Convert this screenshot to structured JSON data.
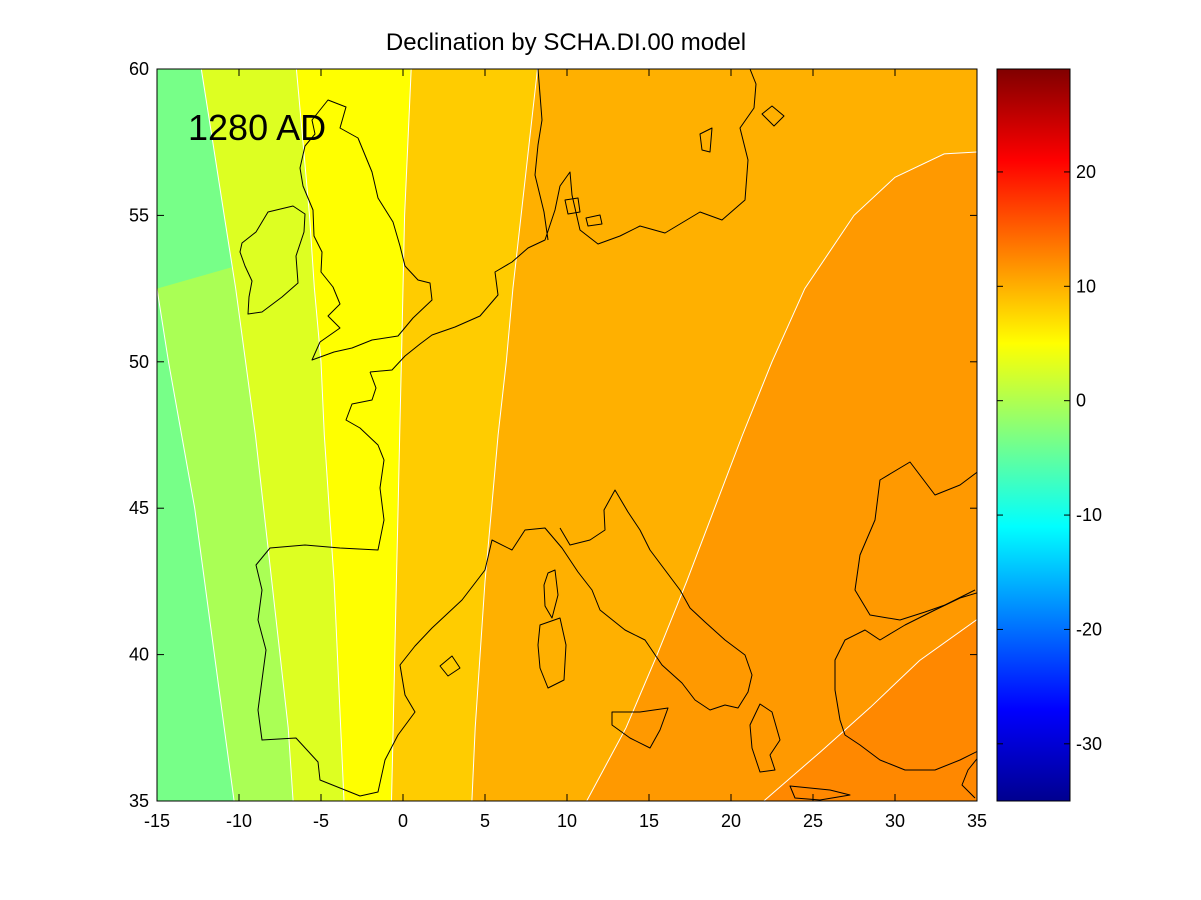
{
  "chart_data": [
    {
      "type": "heatmap",
      "title": "Declination by SCHA.DI.00 model",
      "annotation": "1280 AD",
      "xlabel": "",
      "ylabel": "",
      "xlim": [
        -15,
        35
      ],
      "ylim": [
        35,
        60
      ],
      "x_ticks": [
        -15,
        -10,
        -5,
        0,
        5,
        10,
        15,
        20,
        25,
        30,
        35
      ],
      "y_ticks": [
        35,
        40,
        45,
        50,
        55,
        60
      ],
      "grid": false,
      "contour_levels": [
        -3,
        0,
        3,
        6,
        9,
        12,
        15
      ],
      "contour_bands": [
        {
          "range": [
            -3,
            0
          ],
          "color": "#77ff88"
        },
        {
          "range": [
            0,
            3
          ],
          "color": "#aaff55"
        },
        {
          "range": [
            3,
            6
          ],
          "color": "#ddff22"
        },
        {
          "range": [
            6,
            9
          ],
          "color": "#ffff00"
        },
        {
          "range": [
            9,
            12
          ],
          "color": "#ffcc00"
        },
        {
          "range": [
            12,
            15
          ],
          "color": "#ffb000"
        },
        {
          "range": [
            15,
            18
          ],
          "color": "#ff9900"
        },
        {
          "range": [
            18,
            21
          ],
          "color": "#ff8800"
        }
      ],
      "contour_lines": [
        {
          "level": -3,
          "points": [
            [
              -15,
              52.5
            ],
            [
              -14.3,
              50
            ],
            [
              -13.5,
              47.5
            ],
            [
              -12.7,
              45
            ],
            [
              -12.1,
              42.5
            ],
            [
              -11.5,
              40
            ],
            [
              -10.9,
              37.5
            ],
            [
              -10.3,
              35
            ]
          ]
        },
        {
          "level": 0,
          "points": [
            [
              -12.3,
              60
            ],
            [
              -11.6,
              57.5
            ],
            [
              -10.9,
              55
            ],
            [
              -10.2,
              52.5
            ],
            [
              -9.6,
              50
            ],
            [
              -9.0,
              47.5
            ],
            [
              -8.5,
              45
            ],
            [
              -8.0,
              42.5
            ],
            [
              -7.5,
              40
            ],
            [
              -7.0,
              37.5
            ],
            [
              -6.7,
              35
            ]
          ]
        },
        {
          "level": 3,
          "points": [
            [
              -6.5,
              60
            ],
            [
              -6.1,
              57.5
            ],
            [
              -5.7,
              55
            ],
            [
              -5.4,
              52.5
            ],
            [
              -5.0,
              50
            ],
            [
              -4.8,
              47.5
            ],
            [
              -4.5,
              45
            ],
            [
              -4.2,
              42.5
            ],
            [
              -4.0,
              40
            ],
            [
              -3.8,
              37.5
            ],
            [
              -3.6,
              35
            ]
          ]
        },
        {
          "level": 6,
          "points": [
            [
              0.5,
              60
            ],
            [
              0.3,
              57.5
            ],
            [
              0.1,
              55
            ],
            [
              0,
              52.5
            ],
            [
              -0.1,
              50
            ],
            [
              -0.2,
              47.5
            ],
            [
              -0.3,
              45
            ],
            [
              -0.4,
              42.5
            ],
            [
              -0.5,
              40
            ],
            [
              -0.6,
              37.5
            ],
            [
              -0.7,
              35
            ]
          ]
        },
        {
          "level": 9,
          "points": [
            [
              8.2,
              60
            ],
            [
              7.7,
              57.5
            ],
            [
              7.2,
              55
            ],
            [
              6.7,
              52.5
            ],
            [
              6.3,
              50
            ],
            [
              5.8,
              47.5
            ],
            [
              5.4,
              45
            ],
            [
              5.0,
              42.5
            ],
            [
              4.7,
              40
            ],
            [
              4.4,
              37.5
            ],
            [
              4.2,
              35
            ]
          ]
        },
        {
          "level": 12,
          "points": [
            [
              36,
              57.2
            ],
            [
              33,
              57.1
            ],
            [
              30,
              56.3
            ],
            [
              27.5,
              55
            ],
            [
              24.5,
              52.5
            ],
            [
              22.5,
              50
            ],
            [
              20.7,
              47.5
            ],
            [
              19,
              45
            ],
            [
              17.3,
              42.5
            ],
            [
              15.5,
              40
            ],
            [
              13.6,
              37.5
            ],
            [
              11.2,
              35
            ]
          ]
        },
        {
          "level": 15,
          "points": [
            [
              35,
              41.2
            ],
            [
              31.5,
              39.8
            ],
            [
              28.5,
              38.2
            ],
            [
              25.5,
              36.7
            ],
            [
              22,
              35
            ]
          ]
        }
      ],
      "colorbar": {
        "range": [
          -35,
          29
        ],
        "ticks": [
          20,
          10,
          0,
          -10,
          -20,
          -30
        ],
        "colormap": "jet"
      }
    }
  ]
}
